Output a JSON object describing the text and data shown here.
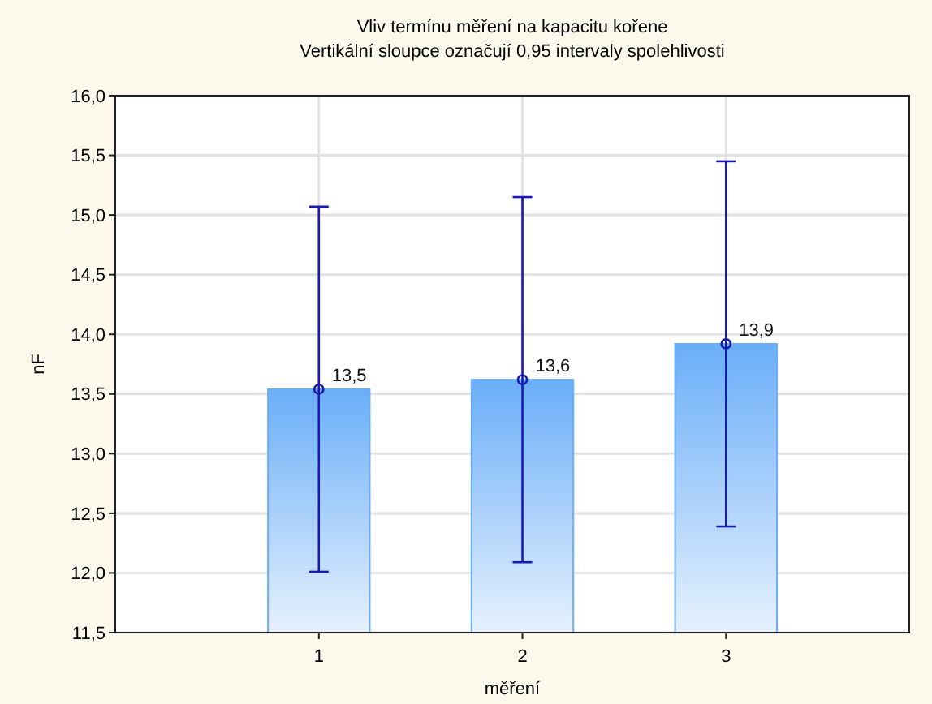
{
  "chart_data": {
    "type": "bar",
    "title": "Vliv termínu měření na kapacitu kořene",
    "subtitle": "Vertikální sloupce označují 0,95 intervaly spolehlivosti",
    "xlabel": "měření",
    "ylabel": "nF",
    "categories": [
      "1",
      "2",
      "3"
    ],
    "series": [
      {
        "color": "#6aaef8",
        "values": [
          13.54,
          13.62,
          13.92
        ],
        "value_labels": [
          "13,5",
          "13,6",
          "13,9"
        ],
        "errors": [
          [
            12.01,
            15.07
          ],
          [
            12.09,
            15.15
          ],
          [
            12.39,
            15.45
          ]
        ]
      },
      {
        "type": "scatter",
        "color": "#1a1ab0",
        "marker": "circle",
        "x": [
          "1",
          "2",
          "3"
        ],
        "values": [
          13.54,
          13.62,
          13.92
        ]
      }
    ],
    "ylim": [
      11.5,
      16.0
    ],
    "yticks": [
      {
        "value": 11.5,
        "label": "11,5"
      },
      {
        "value": 12,
        "label": "12,0"
      },
      {
        "value": 12.5,
        "label": "12,5"
      },
      {
        "value": 13,
        "label": "13,0"
      },
      {
        "value": 13.5,
        "label": "13,5"
      },
      {
        "value": 14,
        "label": "14,0"
      },
      {
        "value": 14.5,
        "label": "14,5"
      },
      {
        "value": 15,
        "label": "15,0"
      },
      {
        "value": 15.5,
        "label": "15,5"
      },
      {
        "value": 16,
        "label": "16,0"
      }
    ],
    "grid": true
  }
}
